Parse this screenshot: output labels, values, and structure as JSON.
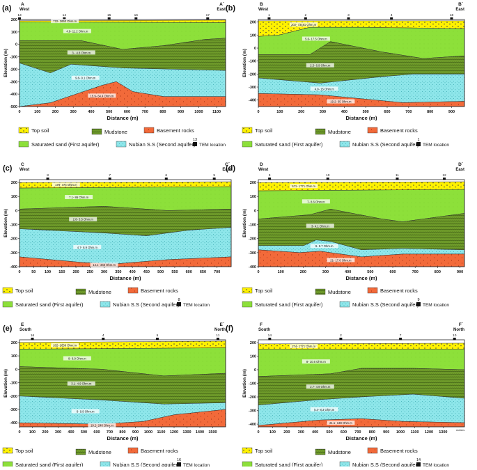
{
  "legend_items": {
    "top_soil": "Top soil",
    "mudstone": "Mudstone",
    "basement": "Basement rocks",
    "sat_sand": "Saturated sand (First aquifer)",
    "nubian": "Nubian S.S (Second aquifer)",
    "tem": "TEM location"
  },
  "colors": {
    "topsoil": "#fff200",
    "satsand": "#8de03a",
    "mudstone": "#6e9a2a",
    "nubian": "#8ee6ea",
    "basement": "#f26a3a"
  },
  "panels": [
    {
      "label": "(a)",
      "start": "A",
      "end": "A`",
      "start_dir": "West",
      "end_dir": "East",
      "x_axis_label": "Distance (m)",
      "y_axis_label": "Elevation (m)",
      "x_ticks": [
        "0",
        "100",
        "200",
        "300",
        "400",
        "500",
        "600",
        "700",
        "800",
        "900",
        "1000",
        "1100"
      ],
      "x_max": 1150,
      "y_ticks": [
        "200",
        "100",
        "0",
        "-100",
        "-200",
        "-300",
        "-400",
        "-500"
      ],
      "y_top": 200,
      "y_bottom": -500,
      "tem": [
        {
          "id": "13",
          "x": 0
        },
        {
          "id": "14",
          "x": 250
        },
        {
          "id": "15",
          "x": 500
        },
        {
          "id": "16",
          "x": 650
        },
        {
          "id": "17",
          "x": 1050
        }
      ],
      "resistivity": [
        "722- 2650 Ohm.m",
        "4.9- 11.2 Ohm.m",
        "3 - 4.8 Ohm.m",
        "9.8- 9.1 Ohm.m",
        "15.9- 64.4 Ohm.m"
      ],
      "legend_tem_number": "13"
    },
    {
      "label": "(b)",
      "start": "B",
      "end": "B`",
      "start_dir": "West",
      "end_dir": "East",
      "x_axis_label": "Distance (m)",
      "y_axis_label": "Elevation (m)",
      "x_ticks": [
        "0",
        "100",
        "200",
        "300",
        "400",
        "500",
        "600",
        "700",
        "800",
        "900"
      ],
      "x_max": 960,
      "y_ticks": [
        "200",
        "100",
        "0",
        "-100",
        "-200",
        "-300",
        "-400"
      ],
      "y_top": 220,
      "y_bottom": -450,
      "tem": [
        {
          "id": "1",
          "x": 50
        },
        {
          "id": "2",
          "x": 220
        },
        {
          "id": "3",
          "x": 420
        },
        {
          "id": "4",
          "x": 620
        },
        {
          "id": "18",
          "x": 900
        }
      ],
      "resistivity": [
        "202- 73481 Ohm.m",
        "5.6- 17.5 Ohm.m",
        "2.5- 6.9 Ohm.m",
        "4.9- 15 Ohm.m",
        "19.2- 65 Ohm.m"
      ],
      "legend_tem_number": "1"
    },
    {
      "label": "(c)",
      "start": "C",
      "end": "C`",
      "start_dir": "West",
      "end_dir": "East",
      "x_axis_label": "Distance (m)",
      "y_axis_label": "Elevation (m)",
      "x_ticks": [
        "0",
        "50",
        "100",
        "150",
        "200",
        "250",
        "300",
        "350",
        "400",
        "450",
        "500",
        "550",
        "600",
        "650",
        "700"
      ],
      "x_max": 750,
      "y_ticks": [
        "200",
        "100",
        "0",
        "-100",
        "-200",
        "-300",
        "-400"
      ],
      "y_top": 220,
      "y_bottom": -400,
      "tem": [
        {
          "id": "8",
          "x": 100
        },
        {
          "id": "7",
          "x": 320
        },
        {
          "id": "6",
          "x": 520
        },
        {
          "id": "5",
          "x": 690
        }
      ],
      "resistivity": [
        "178- 474 Ohm.m",
        "7.1- 86 Ohm.m",
        "2.6- 3.5 Ohm.m",
        "4.7- 8.9 Ohm.m",
        "14.1- 348 Ohm.m"
      ],
      "legend_tem_number": "8"
    },
    {
      "label": "(d)",
      "start": "D",
      "end": "D`",
      "start_dir": "West",
      "end_dir": "East",
      "x_axis_label": "Distance (m)",
      "y_axis_label": "Elevation (m)",
      "x_ticks": [
        "0",
        "100",
        "200",
        "300",
        "400",
        "500",
        "600",
        "700",
        "800",
        "900"
      ],
      "x_max": 920,
      "y_ticks": [
        "200",
        "100",
        "0",
        "-100",
        "-200",
        "-300",
        "-400"
      ],
      "y_top": 220,
      "y_bottom": -400,
      "tem": [
        {
          "id": "9",
          "x": 50
        },
        {
          "id": "10",
          "x": 310
        },
        {
          "id": "11",
          "x": 620
        },
        {
          "id": "12",
          "x": 830
        }
      ],
      "resistivity": [
        "571- 1771 Ohm.m",
        "7- 8.6 Ohm.m",
        "3- 4.1 Ohm.m",
        "9- 9.7 Ohm.m",
        "21- 17.6 Ohm.m"
      ],
      "legend_tem_number": "9"
    },
    {
      "label": "(e)",
      "start": "E",
      "end": "E`",
      "start_dir": "South",
      "end_dir": "North",
      "x_axis_label": "Distance (m)",
      "y_axis_label": "Elevation (m)",
      "x_ticks": [
        "0",
        "100",
        "200",
        "300",
        "400",
        "500",
        "600",
        "700",
        "800",
        "900",
        "1000",
        "1100",
        "1200",
        "1300",
        "1400",
        "1500"
      ],
      "x_max": 1600,
      "y_ticks": [
        "200",
        "100",
        "0",
        "-100",
        "-200",
        "-300",
        "-400"
      ],
      "y_top": 220,
      "y_bottom": -430,
      "tem": [
        {
          "id": "16",
          "x": 100
        },
        {
          "id": "4",
          "x": 650
        },
        {
          "id": "5",
          "x": 1070
        },
        {
          "id": "11",
          "x": 1540
        }
      ],
      "resistivity": [
        "202- 2650 Ohm.m",
        "8- 8.9 Ohm.m",
        "3.1- 4.9 Ohm.m",
        "6- 9.9 Ohm.m",
        "19.2- 240 Ohm.m"
      ],
      "legend_tem_number": "16"
    },
    {
      "label": "(f)",
      "start": "F",
      "end": "F`",
      "start_dir": "South",
      "end_dir": "North",
      "x_axis_label": "Distance (m)",
      "y_axis_label": "Elevation (m)",
      "x_ticks": [
        "0",
        "100",
        "200",
        "300",
        "400",
        "500",
        "600",
        "700",
        "800",
        "900",
        "1000",
        "1100",
        "1200",
        "1300"
      ],
      "x_max": 1450,
      "x_unit_suffix": "meters",
      "y_ticks": [
        "200",
        "100",
        "0",
        "-100",
        "-200",
        "-300",
        "-400"
      ],
      "y_top": 220,
      "y_bottom": -420,
      "tem": [
        {
          "id": "14",
          "x": 80
        },
        {
          "id": "2",
          "x": 580
        },
        {
          "id": "7",
          "x": 1000
        },
        {
          "id": "10",
          "x": 1380
        }
      ],
      "resistivity": [
        "274- 1771 Ohm.m",
        "8- 10.6 Ohm.m",
        "2.7- 4.9 Ohm.m",
        "5.4- 8.3 Ohm.m",
        "21.1- 138 Ohm.m"
      ],
      "legend_tem_number": "14"
    }
  ]
}
